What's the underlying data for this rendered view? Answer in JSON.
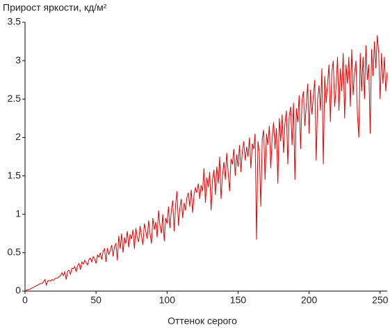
{
  "chart_data": {
    "type": "line",
    "title": "Прирост яркости, кд/м²",
    "x_label": "Оттенок серого",
    "color": "#e00000",
    "xlim": [
      0,
      255
    ],
    "xticks": [
      0,
      50,
      100,
      150,
      200,
      250
    ],
    "ylim": [
      0,
      3.5
    ],
    "yticks": [
      0,
      0.5,
      1,
      1.5,
      2,
      2.5,
      3,
      3.5
    ],
    "grid": false,
    "x": [
      0,
      1,
      2,
      3,
      4,
      5,
      6,
      7,
      8,
      9,
      10,
      11,
      12,
      13,
      14,
      15,
      16,
      17,
      18,
      19,
      20,
      21,
      22,
      23,
      24,
      25,
      26,
      27,
      28,
      29,
      30,
      31,
      32,
      33,
      34,
      35,
      36,
      37,
      38,
      39,
      40,
      41,
      42,
      43,
      44,
      45,
      46,
      47,
      48,
      49,
      50,
      51,
      52,
      53,
      54,
      55,
      56,
      57,
      58,
      59,
      60,
      61,
      62,
      63,
      64,
      65,
      66,
      67,
      68,
      69,
      70,
      71,
      72,
      73,
      74,
      75,
      76,
      77,
      78,
      79,
      80,
      81,
      82,
      83,
      84,
      85,
      86,
      87,
      88,
      89,
      90,
      91,
      92,
      93,
      94,
      95,
      96,
      97,
      98,
      99,
      100,
      101,
      102,
      103,
      104,
      105,
      106,
      107,
      108,
      109,
      110,
      111,
      112,
      113,
      114,
      115,
      116,
      117,
      118,
      119,
      120,
      121,
      122,
      123,
      124,
      125,
      126,
      127,
      128,
      129,
      130,
      131,
      132,
      133,
      134,
      135,
      136,
      137,
      138,
      139,
      140,
      141,
      142,
      143,
      144,
      145,
      146,
      147,
      148,
      149,
      150,
      151,
      152,
      153,
      154,
      155,
      156,
      157,
      158,
      159,
      160,
      161,
      162,
      163,
      164,
      165,
      166,
      167,
      168,
      169,
      170,
      171,
      172,
      173,
      174,
      175,
      176,
      177,
      178,
      179,
      180,
      181,
      182,
      183,
      184,
      185,
      186,
      187,
      188,
      189,
      190,
      191,
      192,
      193,
      194,
      195,
      196,
      197,
      198,
      199,
      200,
      201,
      202,
      203,
      204,
      205,
      206,
      207,
      208,
      209,
      210,
      211,
      212,
      213,
      214,
      215,
      216,
      217,
      218,
      219,
      220,
      221,
      222,
      223,
      224,
      225,
      226,
      227,
      228,
      229,
      230,
      231,
      232,
      233,
      234,
      235,
      236,
      237,
      238,
      239,
      240,
      241,
      242,
      243,
      244,
      245,
      246,
      247,
      248,
      249,
      250,
      251,
      252,
      253,
      254,
      255
    ],
    "values": [
      0,
      0.01,
      0.02,
      0.02,
      0.03,
      0.04,
      0.05,
      0.06,
      0.07,
      0.08,
      0.09,
      0.1,
      0.1,
      0.12,
      0.15,
      0.08,
      0.13,
      0.14,
      0.13,
      0.15,
      0.14,
      0.16,
      0.17,
      0.17,
      0.19,
      0.2,
      0.24,
      0.2,
      0.25,
      0.15,
      0.26,
      0.27,
      0.22,
      0.3,
      0.29,
      0.32,
      0.25,
      0.33,
      0.36,
      0.28,
      0.38,
      0.35,
      0.4,
      0.37,
      0.34,
      0.41,
      0.43,
      0.38,
      0.45,
      0.42,
      0.36,
      0.47,
      0.44,
      0.5,
      0.41,
      0.52,
      0.55,
      0.38,
      0.56,
      0.48,
      0.53,
      0.6,
      0.45,
      0.58,
      0.62,
      0.4,
      0.72,
      0.55,
      0.75,
      0.5,
      0.7,
      0.62,
      0.78,
      0.57,
      0.74,
      0.68,
      0.8,
      0.55,
      0.82,
      0.7,
      0.64,
      0.85,
      0.72,
      0.6,
      0.88,
      0.78,
      0.68,
      0.92,
      0.75,
      0.62,
      0.95,
      0.8,
      0.9,
      0.7,
      1.05,
      0.85,
      0.75,
      1.0,
      0.65,
      0.95,
      0.88,
      1.1,
      0.82,
      1.05,
      1.18,
      0.78,
      1.12,
      1.3,
      0.85,
      1.08,
      1.2,
      0.95,
      1.15,
      1.05,
      1.22,
      1.28,
      1.1,
      1.32,
      1.02,
      1.25,
      1.35,
      1.28,
      1.4,
      1.2,
      1.38,
      1.3,
      1.6,
      1.15,
      1.48,
      1.35,
      1.55,
      1.05,
      1.45,
      1.58,
      1.25,
      1.62,
      1.4,
      1.75,
      1.2,
      1.5,
      1.68,
      1.45,
      1.8,
      1.55,
      1.3,
      1.72,
      1.65,
      1.85,
      1.5,
      1.78,
      1.62,
      1.9,
      1.55,
      1.82,
      1.95,
      1.7,
      1.88,
      1.75,
      2.0,
      1.6,
      1.92,
      1.85,
      2.05,
      0.67,
      1.95,
      1.8,
      1.1,
      1.98,
      2.1,
      1.45,
      2.05,
      1.9,
      2.15,
      1.6,
      2.0,
      2.2,
      1.85,
      2.12,
      1.4,
      2.25,
      1.95,
      2.3,
      1.8,
      2.18,
      2.35,
      1.65,
      2.28,
      2.4,
      1.9,
      2.45,
      1.45,
      2.38,
      2.2,
      2.55,
      1.85,
      2.48,
      2.6,
      2.15,
      2.42,
      2.7,
      2.05,
      2.62,
      2.3,
      2.55,
      2.75,
      1.7,
      2.5,
      2.68,
      2.35,
      2.9,
      1.65,
      2.8,
      2.45,
      2.7,
      2.95,
      2.2,
      2.85,
      3.0,
      2.4,
      2.65,
      3.05,
      2.35,
      2.9,
      2.6,
      3.1,
      2.25,
      2.95,
      2.7,
      3.05,
      2.4,
      3.15,
      2.55,
      2.85,
      3.0,
      2.3,
      2.0,
      3.1,
      2.6,
      3.05,
      2.5,
      3.2,
      2.75,
      2.95,
      2.05,
      3.15,
      2.8,
      3.25,
      2.9,
      3.33,
      3.1,
      2.5,
      3.1,
      2.7,
      3.05,
      2.6,
      2.85
    ]
  }
}
